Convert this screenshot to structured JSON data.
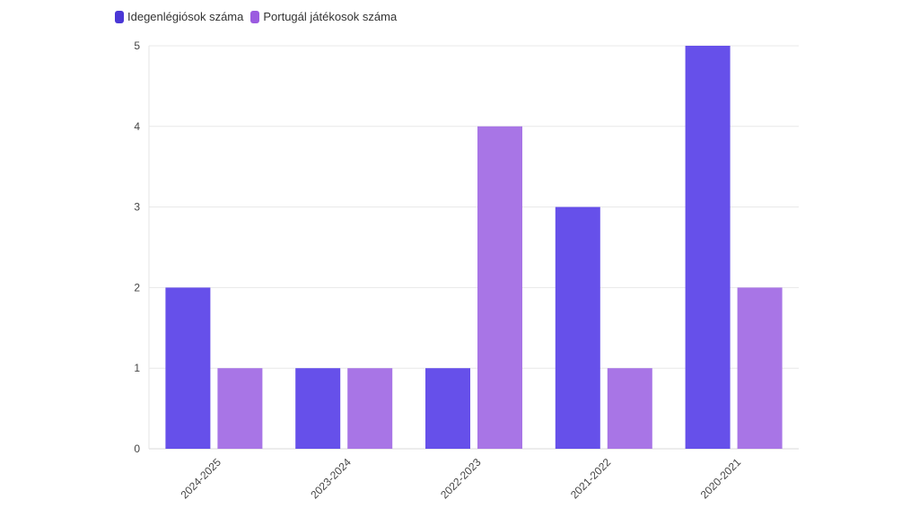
{
  "chart_data": {
    "type": "bar",
    "categories": [
      "2024-2025",
      "2023-2024",
      "2022-2023",
      "2021-2022",
      "2020-2021"
    ],
    "series": [
      {
        "name": "Idegenlégiósok száma",
        "values": [
          2,
          1,
          1,
          3,
          5
        ],
        "color": "#6650EA"
      },
      {
        "name": "Portugál játékosok száma",
        "values": [
          1,
          1,
          4,
          1,
          2
        ],
        "color": "#A875E6"
      }
    ],
    "legend_swatch_colors": [
      "#4A37D6",
      "#9B5BE0"
    ],
    "ylim": [
      0,
      5
    ],
    "yticks": [
      0,
      1,
      2,
      3,
      4,
      5
    ],
    "grid": true,
    "legend_position": "top-left",
    "title": "",
    "xlabel": "",
    "ylabel": ""
  }
}
